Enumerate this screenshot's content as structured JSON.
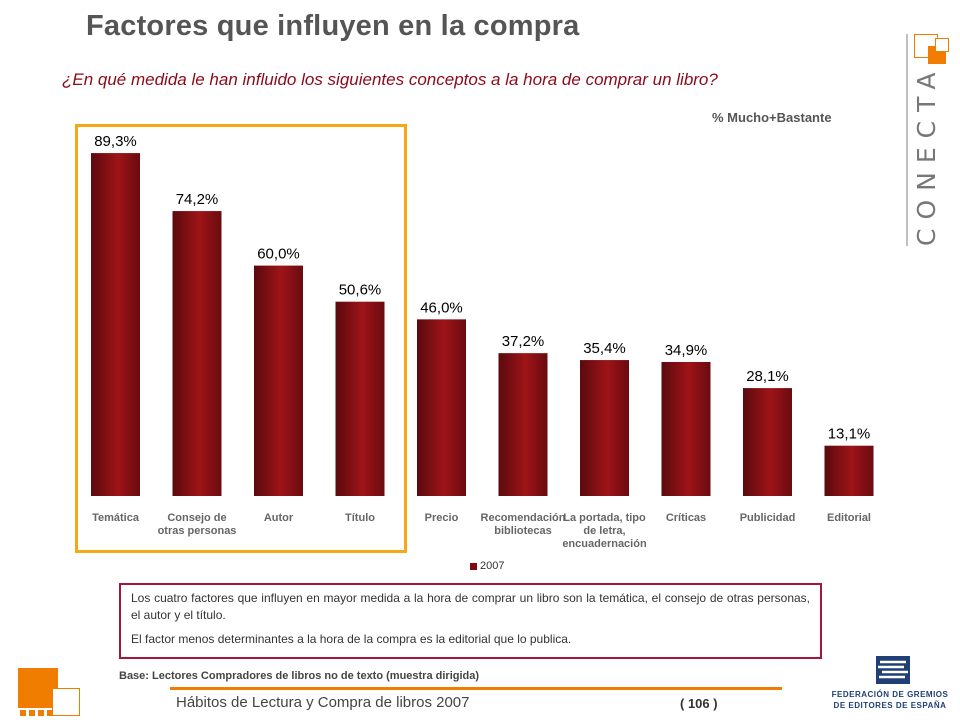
{
  "slide": {
    "title": "Factores que influyen en la compra",
    "question": "¿En qué medida le han influido los siguientes conceptos a la hora de comprar un libro?",
    "unit_label": "% Mucho+Bastante",
    "brand": "CONECTA",
    "legend_label": "2007",
    "note_p1": "Los cuatro factores que influyen en mayor medida a la hora de comprar un libro son la temática, el consejo de otras personas, el autor y el título.",
    "note_p2": "El factor menos determinantes a la hora de la compra es la editorial que lo publica.",
    "base": "Base: Lectores Compradores de libros no de texto (muestra dirigida)",
    "footer": "Hábitos de Lectura y Compra de libros 2007",
    "page": "( 106 )",
    "fge_line1": "FEDERACIÓN DE GREMIOS",
    "fge_line2": "DE EDITORES DE ESPAÑA"
  },
  "colors": {
    "bar_dark": "#5a0a0e",
    "bar_mid": "#9e1418",
    "accent_orange": "#f07d00",
    "highlight": "#f6a817",
    "note_border": "#a3173a",
    "question": "#8b0a1a"
  },
  "chart_data": {
    "type": "bar",
    "categories": [
      [
        "Temática"
      ],
      [
        "Consejo de",
        "otras personas"
      ],
      [
        "Autor"
      ],
      [
        "Título"
      ],
      [
        "Precio"
      ],
      [
        "Recomendación",
        "bibliotecas"
      ],
      [
        "La portada, tipo",
        "de letra,",
        "encuadernación"
      ],
      [
        "Críticas"
      ],
      [
        "Publicidad"
      ],
      [
        "Editorial"
      ]
    ],
    "series": [
      {
        "name": "2007",
        "values": [
          89.3,
          74.2,
          60.0,
          50.6,
          46.0,
          37.2,
          35.4,
          34.9,
          28.1,
          13.1
        ],
        "labels": [
          "89,3%",
          "74,2%",
          "60,0%",
          "50,6%",
          "46,0%",
          "37,2%",
          "35,4%",
          "34,9%",
          "28,1%",
          "13,1%"
        ]
      }
    ],
    "ylim": [
      0,
      100
    ],
    "grid": false,
    "legend": "bottom-center",
    "highlighted_categories": 4
  }
}
